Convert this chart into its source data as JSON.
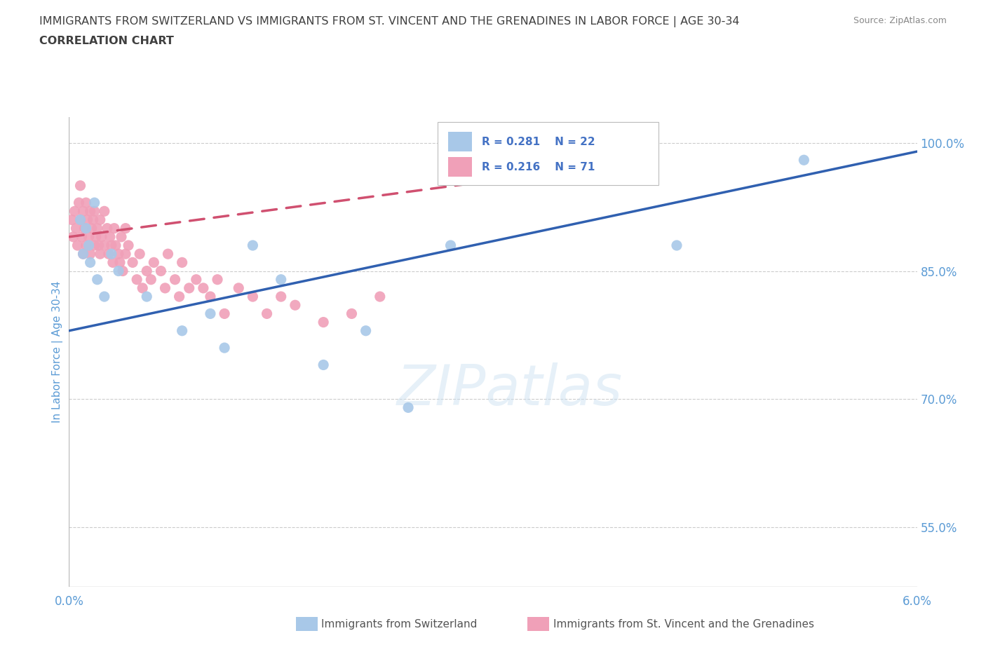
{
  "title_line1": "IMMIGRANTS FROM SWITZERLAND VS IMMIGRANTS FROM ST. VINCENT AND THE GRENADINES IN LABOR FORCE | AGE 30-34",
  "title_line2": "CORRELATION CHART",
  "source_text": "Source: ZipAtlas.com",
  "ylabel": "In Labor Force | Age 30-34",
  "xlim": [
    0.0,
    6.0
  ],
  "ylim": [
    48.0,
    103.0
  ],
  "x_ticks": [
    0.0,
    1.0,
    2.0,
    3.0,
    4.0,
    5.0,
    6.0
  ],
  "x_tick_labels": [
    "0.0%",
    "",
    "",
    "",
    "",
    "",
    "6.0%"
  ],
  "y_ticks_right": [
    55.0,
    70.0,
    85.0,
    100.0
  ],
  "y_tick_labels_right": [
    "55.0%",
    "70.0%",
    "85.0%",
    "100.0%"
  ],
  "watermark": "ZIPatlas",
  "legend_R_blue": "R = 0.281",
  "legend_N_blue": "N = 22",
  "legend_R_pink": "R = 0.216",
  "legend_N_pink": "N = 71",
  "blue_color": "#a8c8e8",
  "blue_line_color": "#3060b0",
  "pink_color": "#f0a0b8",
  "pink_line_color": "#d05070",
  "title_color": "#404040",
  "axis_label_color": "#5b9bd5",
  "legend_text_color": "#4472c4",
  "blue_scatter_x": [
    0.08,
    0.1,
    0.12,
    0.14,
    0.15,
    0.18,
    0.2,
    0.25,
    0.3,
    0.35,
    0.55,
    0.8,
    1.0,
    1.1,
    1.3,
    1.5,
    1.8,
    2.1,
    2.4,
    2.7,
    5.2,
    4.3
  ],
  "blue_scatter_y": [
    91.0,
    87.0,
    90.0,
    88.0,
    86.0,
    93.0,
    84.0,
    82.0,
    87.0,
    85.0,
    82.0,
    78.0,
    80.0,
    76.0,
    88.0,
    84.0,
    74.0,
    78.0,
    69.0,
    88.0,
    98.0,
    88.0
  ],
  "pink_scatter_x": [
    0.02,
    0.03,
    0.04,
    0.05,
    0.06,
    0.07,
    0.08,
    0.08,
    0.09,
    0.1,
    0.1,
    0.11,
    0.12,
    0.12,
    0.13,
    0.14,
    0.15,
    0.15,
    0.16,
    0.17,
    0.18,
    0.18,
    0.19,
    0.2,
    0.21,
    0.22,
    0.22,
    0.23,
    0.25,
    0.25,
    0.27,
    0.28,
    0.29,
    0.3,
    0.31,
    0.32,
    0.33,
    0.35,
    0.36,
    0.37,
    0.38,
    0.4,
    0.4,
    0.42,
    0.45,
    0.48,
    0.5,
    0.52,
    0.55,
    0.58,
    0.6,
    0.65,
    0.68,
    0.7,
    0.75,
    0.78,
    0.8,
    0.85,
    0.9,
    0.95,
    1.0,
    1.05,
    1.1,
    1.2,
    1.3,
    1.4,
    1.5,
    1.6,
    1.8,
    2.0,
    2.2
  ],
  "pink_scatter_y": [
    91.0,
    89.0,
    92.0,
    90.0,
    88.0,
    93.0,
    91.0,
    95.0,
    89.0,
    92.0,
    87.0,
    90.0,
    88.0,
    93.0,
    91.0,
    89.0,
    92.0,
    87.0,
    90.0,
    91.0,
    88.0,
    92.0,
    89.0,
    90.0,
    88.0,
    91.0,
    87.0,
    89.0,
    88.0,
    92.0,
    90.0,
    87.0,
    89.0,
    88.0,
    86.0,
    90.0,
    88.0,
    87.0,
    86.0,
    89.0,
    85.0,
    87.0,
    90.0,
    88.0,
    86.0,
    84.0,
    87.0,
    83.0,
    85.0,
    84.0,
    86.0,
    85.0,
    83.0,
    87.0,
    84.0,
    82.0,
    86.0,
    83.0,
    84.0,
    83.0,
    82.0,
    84.0,
    80.0,
    83.0,
    82.0,
    80.0,
    82.0,
    81.0,
    79.0,
    80.0,
    82.0
  ]
}
